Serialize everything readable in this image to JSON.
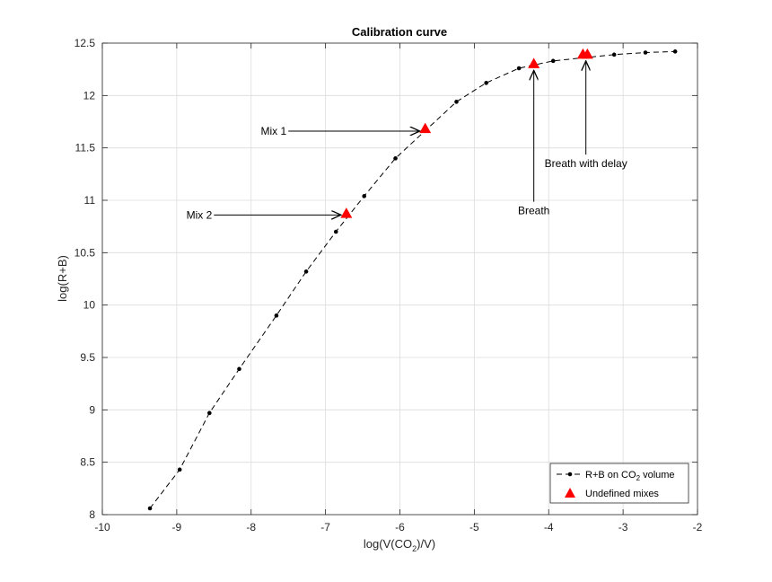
{
  "chart_data": {
    "type": "line",
    "title": "Calibration curve",
    "xlabel": {
      "prefix": "log(V(CO",
      "sub": "2",
      "suffix": ")/V)"
    },
    "ylabel": "log(R+B)",
    "xlim": [
      -10,
      -2
    ],
    "ylim": [
      8,
      12.5
    ],
    "xticks": [
      -10,
      -9,
      -8,
      -7,
      -6,
      -5,
      -4,
      -3,
      -2
    ],
    "yticks": [
      8,
      8.5,
      9,
      9.5,
      10,
      10.5,
      11,
      11.5,
      12,
      12.5
    ],
    "xtick_labels": [
      "-10",
      "-9",
      "-8",
      "-7",
      "-6",
      "-5",
      "-4",
      "-3",
      "-2"
    ],
    "ytick_labels": [
      "8",
      "8.5",
      "9",
      "9.5",
      "10",
      "10.5",
      "11",
      "11.5",
      "12",
      "12.5"
    ],
    "grid": true,
    "legend_position": "bottom-right",
    "series": [
      {
        "name": {
          "prefix": "R+B on CO",
          "sub": "2",
          "suffix": " volume"
        },
        "style": "dashed-line-with-dots",
        "color": "#000000",
        "x": [
          -9.36,
          -8.96,
          -8.56,
          -8.16,
          -7.66,
          -7.26,
          -6.86,
          -6.48,
          -6.06,
          -5.24,
          -4.84,
          -4.4,
          -3.94,
          -3.12,
          -2.7,
          -2.3
        ],
        "y": [
          8.06,
          8.43,
          8.97,
          9.39,
          9.9,
          10.32,
          10.7,
          11.04,
          11.4,
          11.94,
          12.12,
          12.26,
          12.33,
          12.39,
          12.41,
          12.42
        ]
      },
      {
        "name": "Undefined mixes",
        "style": "triangle-markers",
        "color": "#ff0000",
        "x": [
          -6.72,
          -5.66,
          -4.2,
          -3.54,
          -3.48
        ],
        "y": [
          10.87,
          11.68,
          12.3,
          12.39,
          12.39
        ]
      }
    ],
    "annotations": [
      {
        "text": "Mix 1",
        "text_x": -7.5,
        "text_y": 11.66,
        "target_x": -5.66,
        "target_y": 11.66
      },
      {
        "text": "Mix 2",
        "text_x": -8.5,
        "text_y": 10.86,
        "target_x": -6.72,
        "target_y": 10.86
      },
      {
        "text": "Breath",
        "text_x": -4.2,
        "text_y": 10.9,
        "target_x": -4.2,
        "target_y": 12.24
      },
      {
        "text": "Breath with delay",
        "text_x": -3.5,
        "text_y": 11.35,
        "target_x": -3.5,
        "target_y": 12.33
      }
    ]
  }
}
